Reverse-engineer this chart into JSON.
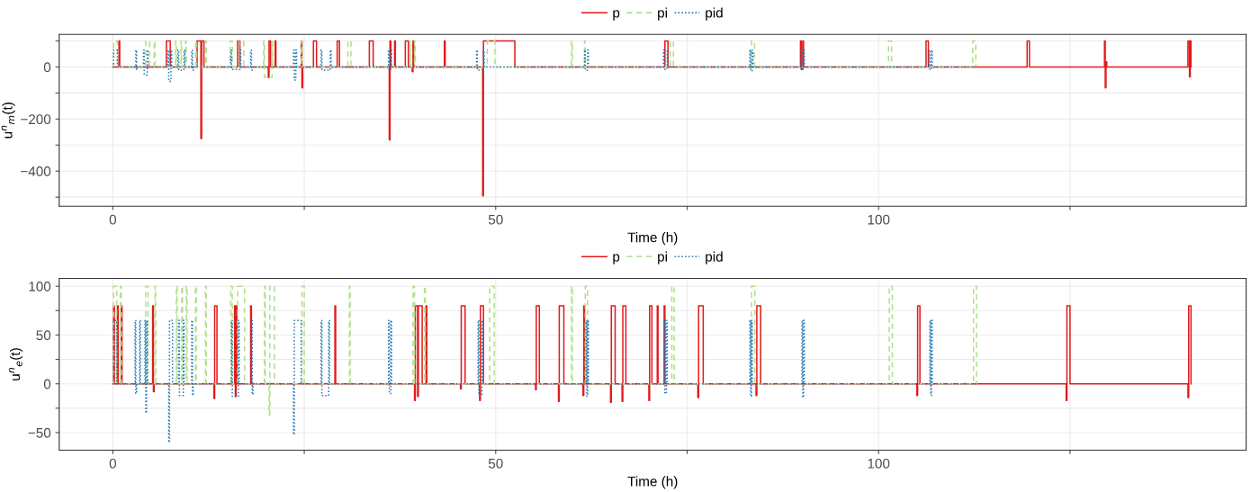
{
  "chart_data": [
    {
      "type": "step",
      "xlabel": "Time (h)",
      "ylabel": "u$^{n}$$_{m}$(t)",
      "xlim": [
        -7,
        148
      ],
      "ylim": [
        -535,
        125
      ],
      "xticks": [
        {
          "value": 0,
          "label": "0"
        },
        {
          "value": 25,
          "label": null
        },
        {
          "value": 50,
          "label": "50"
        },
        {
          "value": 75,
          "label": null
        },
        {
          "value": 100,
          "label": "100"
        },
        {
          "value": 125,
          "label": null
        }
      ],
      "yticks": [
        {
          "value": -500,
          "label": null
        },
        {
          "value": -400,
          "label": "−400"
        },
        {
          "value": -300,
          "label": null
        },
        {
          "value": -200,
          "label": "−200"
        },
        {
          "value": -100,
          "label": null
        },
        {
          "value": 0,
          "label": "0"
        },
        {
          "value": 100,
          "label": null
        }
      ],
      "grid": true,
      "legend": "top",
      "series": [
        {
          "name": "p",
          "color": "#e31a1c",
          "line_style": "solid",
          "x": [
            0,
            0.8,
            0.9,
            7.0,
            7.4,
            7.5,
            11.0,
            11.4,
            11.5,
            11.6,
            11.8,
            11.9,
            16.3,
            16.5,
            16.6,
            20.3,
            20.4,
            20.6,
            21.2,
            21.3,
            24.6,
            24.7,
            24.8,
            26.2,
            26.5,
            26.6,
            29.3,
            29.5,
            29.6,
            33.5,
            33.9,
            34.0,
            36.1,
            36.2,
            36.3,
            36.8,
            36.9,
            38.2,
            38.5,
            38.6,
            39.1,
            39.2,
            39.3,
            43.3,
            43.4,
            48.3,
            48.4,
            52.4,
            52.5,
            72.1,
            72.4,
            72.5,
            89.8,
            89.9,
            90.1,
            90.2,
            106.2,
            106.4,
            106.5,
            119.4,
            119.6,
            119.7,
            129.5,
            129.6,
            129.7,
            129.8,
            140.4,
            140.6,
            140.7,
            140.8
          ],
          "values": [
            0,
            100,
            0,
            100,
            100,
            0,
            100,
            100,
            -275,
            100,
            100,
            0,
            100,
            100,
            0,
            -40,
            100,
            0,
            100,
            0,
            100,
            -80,
            0,
            100,
            100,
            0,
            100,
            100,
            0,
            100,
            100,
            0,
            -280,
            100,
            0,
            100,
            0,
            100,
            100,
            0,
            -18,
            100,
            0,
            100,
            0,
            -495,
            100,
            100,
            0,
            100,
            100,
            0,
            100,
            -10,
            100,
            0,
            100,
            100,
            0,
            100,
            100,
            0,
            100,
            -80,
            20,
            0,
            100,
            -38,
            100,
            0
          ]
        },
        {
          "name": "pi",
          "color": "#b2df8a",
          "line_style": "dashed",
          "x": [
            0,
            0.1,
            0.5,
            0.6,
            4.3,
            4.7,
            4.8,
            5.4,
            5.5,
            8.2,
            8.3,
            8.9,
            9.0,
            9.5,
            9.6,
            10.8,
            10.9,
            12.1,
            12.2,
            15.3,
            15.6,
            16.5,
            17.0,
            17.1,
            19.7,
            19.8,
            20.8,
            20.9,
            24.6,
            24.7,
            30.7,
            31.0,
            31.1,
            38.8,
            38.9,
            39.4,
            39.5,
            48.9,
            49.8,
            49.9,
            59.9,
            60.0,
            61.6,
            61.7,
            72.8,
            73.1,
            73.2,
            83.4,
            83.7,
            83.8,
            101.3,
            101.6,
            101.7,
            112.3,
            112.6,
            112.7
          ],
          "values": [
            0,
            100,
            100,
            0,
            100,
            100,
            0,
            100,
            0,
            100,
            0,
            100,
            0,
            100,
            0,
            100,
            0,
            100,
            0,
            100,
            0,
            100,
            100,
            0,
            100,
            -40,
            100,
            0,
            100,
            0,
            100,
            100,
            0,
            100,
            0,
            100,
            0,
            100,
            100,
            0,
            100,
            0,
            100,
            0,
            100,
            100,
            0,
            100,
            100,
            0,
            100,
            100,
            0,
            100,
            100,
            0
          ]
        },
        {
          "name": "pid",
          "color": "#1f78b4",
          "line_style": "dotted",
          "x": [
            0,
            0.1,
            0.5,
            0.6,
            3.0,
            3.1,
            3.2,
            4.0,
            4.1,
            4.5,
            4.6,
            7.2,
            7.3,
            7.6,
            7.7,
            8.5,
            8.6,
            9.3,
            9.4,
            10.3,
            10.4,
            10.5,
            15.4,
            15.5,
            16.6,
            16.7,
            18.0,
            18.1,
            18.2,
            23.6,
            23.7,
            23.9,
            24.0,
            27.2,
            27.3,
            28.4,
            28.5,
            36.0,
            36.1,
            36.3,
            36.4,
            47.5,
            47.6,
            48.4,
            48.5,
            61.6,
            61.7,
            62.0,
            62.1,
            71.9,
            72.0,
            72.4,
            72.5,
            83.2,
            83.3,
            83.5,
            83.6,
            89.9,
            90.0,
            90.2,
            90.3,
            106.6,
            106.7,
            106.9,
            107.0,
            112.7
          ],
          "values": [
            0,
            65,
            65,
            0,
            65,
            -10,
            0,
            65,
            -30,
            65,
            0,
            65,
            -55,
            65,
            0,
            65,
            -12,
            65,
            0,
            65,
            -12,
            0,
            65,
            -10,
            65,
            0,
            65,
            -12,
            0,
            65,
            -50,
            65,
            0,
            65,
            -12,
            65,
            0,
            65,
            -12,
            65,
            0,
            65,
            -12,
            65,
            0,
            65,
            -12,
            65,
            0,
            65,
            -10,
            65,
            0,
            65,
            -15,
            65,
            0,
            65,
            -8,
            65,
            0,
            65,
            -10,
            65,
            0,
            0
          ]
        }
      ]
    },
    {
      "type": "step",
      "xlabel": "Time (h)",
      "ylabel": "u$^{n}$$_{e}$(t)",
      "xlim": [
        -7,
        148
      ],
      "ylim": [
        -68,
        108
      ],
      "xticks": [
        {
          "value": 0,
          "label": "0"
        },
        {
          "value": 25,
          "label": null
        },
        {
          "value": 50,
          "label": "50"
        },
        {
          "value": 75,
          "label": null
        },
        {
          "value": 100,
          "label": "100"
        },
        {
          "value": 125,
          "label": null
        }
      ],
      "yticks": [
        {
          "value": -50,
          "label": "−50"
        },
        {
          "value": -25,
          "label": null
        },
        {
          "value": 0,
          "label": "0"
        },
        {
          "value": 25,
          "label": null
        },
        {
          "value": 50,
          "label": "50"
        },
        {
          "value": 75,
          "label": null
        },
        {
          "value": 100,
          "label": "100"
        }
      ],
      "grid": true,
      "legend": "top",
      "series": [
        {
          "name": "p",
          "color": "#e31a1c",
          "line_style": "solid",
          "x": [
            0,
            0.1,
            0.2,
            0.6,
            0.7,
            1.1,
            1.2,
            5.2,
            5.3,
            5.4,
            13.2,
            13.3,
            13.5,
            13.6,
            15.9,
            16.0,
            16.1,
            16.2,
            18,
            18.1,
            29,
            29.1,
            39.4,
            39.5,
            39.8,
            39.9,
            40.3,
            40.4,
            40.9,
            41.0,
            45.4,
            45.5,
            45.9,
            46.0,
            47.9,
            48.0,
            48.3,
            48.4,
            55.2,
            55.3,
            55.6,
            55.7,
            58.2,
            58.3,
            58.8,
            58.9,
            61.4,
            61.5,
            61.6,
            65.0,
            65.1,
            65.5,
            65.6,
            66.5,
            66.6,
            66.9,
            67.0,
            70.0,
            70.1,
            70.3,
            70.4,
            71.1,
            71.2,
            72.0,
            72.1,
            76.4,
            76.5,
            77.0,
            77.1,
            84.0,
            84.1,
            84.5,
            84.6,
            105.0,
            105.1,
            105.3,
            105.4,
            124.5,
            124.6,
            124.9,
            125.0,
            140.4,
            140.5,
            140.7,
            140.8
          ],
          "values": [
            0,
            80,
            0,
            80,
            0,
            80,
            0,
            80,
            -8,
            0,
            -15,
            80,
            80,
            0,
            80,
            -13,
            80,
            0,
            80,
            0,
            80,
            0,
            -17,
            80,
            -13,
            80,
            80,
            0,
            80,
            0,
            -5,
            80,
            80,
            0,
            -17,
            80,
            80,
            0,
            -6,
            80,
            80,
            0,
            -18,
            80,
            80,
            0,
            -12,
            80,
            0,
            -19,
            80,
            80,
            0,
            -18,
            80,
            80,
            0,
            -17,
            80,
            80,
            0,
            80,
            0,
            80,
            0,
            -14,
            80,
            80,
            0,
            -12,
            80,
            80,
            0,
            -12,
            80,
            80,
            0,
            -17,
            80,
            80,
            0,
            -14,
            80,
            80,
            0
          ]
        },
        {
          "name": "pi",
          "color": "#b2df8a",
          "line_style": "dashed",
          "x": [
            0,
            0.1,
            0.4,
            0.5,
            1.0,
            1.1,
            4.3,
            4.5,
            4.6,
            5.5,
            5.6,
            8.3,
            8.4,
            9.0,
            9.1,
            9.6,
            9.7,
            10.8,
            10.9,
            12.1,
            12.2,
            15.4,
            15.6,
            16.3,
            17.1,
            17.2,
            19.8,
            19.9,
            20.4,
            20.5,
            21.0,
            21.1,
            24.7,
            24.9,
            25.0,
            30.9,
            31.0,
            39.2,
            39.4,
            40.7,
            40.8,
            49.2,
            49.7,
            49.8,
            59.9,
            60.0,
            61.7,
            61.9,
            62.0,
            73.0,
            73.2,
            73.3,
            83.4,
            83.75,
            83.85,
            101.4,
            101.7,
            101.8,
            112.4,
            112.7,
            112.8
          ],
          "values": [
            0,
            100,
            100,
            0,
            100,
            0,
            100,
            100,
            0,
            100,
            0,
            100,
            0,
            100,
            0,
            100,
            0,
            100,
            0,
            100,
            0,
            100,
            0,
            100,
            100,
            0,
            100,
            0,
            -32,
            100,
            100,
            0,
            100,
            100,
            0,
            100,
            0,
            100,
            0,
            100,
            0,
            100,
            100,
            0,
            100,
            0,
            100,
            100,
            0,
            100,
            100,
            0,
            100,
            100,
            0,
            100,
            100,
            0,
            100,
            100,
            0
          ]
        },
        {
          "name": "pid",
          "color": "#1f78b4",
          "line_style": "dotted",
          "x": [
            0,
            0.1,
            0.4,
            0.5,
            2.9,
            3.0,
            3.1,
            3.5,
            3.6,
            4.2,
            4.3,
            4.4,
            4.5,
            7.3,
            7.4,
            7.7,
            7.8,
            8.6,
            8.7,
            9.2,
            9.3,
            10.3,
            10.4,
            10.5,
            15.5,
            15.6,
            16.4,
            16.5,
            18.1,
            18.2,
            18.3,
            23.6,
            23.7,
            24.5,
            24.6,
            27.2,
            27.3,
            28.2,
            28.3,
            36.0,
            36.1,
            36.3,
            36.4,
            47.7,
            47.8,
            48.2,
            48.3,
            61.8,
            61.9,
            62.0,
            62.1,
            72.0,
            72.1,
            72.3,
            72.4,
            83.2,
            83.3,
            83.4,
            83.5,
            90.0,
            90.1,
            90.2,
            90.3,
            106.7,
            106.8,
            106.9,
            107.0,
            112.8
          ],
          "values": [
            0,
            65,
            65,
            0,
            65,
            -10,
            0,
            65,
            0,
            65,
            -30,
            65,
            0,
            -60,
            65,
            65,
            0,
            65,
            -12,
            65,
            0,
            65,
            -12,
            0,
            65,
            -13,
            65,
            0,
            65,
            -11,
            0,
            -52,
            65,
            65,
            0,
            65,
            -12,
            65,
            0,
            65,
            -10,
            65,
            0,
            65,
            -12,
            65,
            0,
            65,
            -13,
            65,
            0,
            65,
            -10,
            65,
            0,
            65,
            -13,
            65,
            0,
            65,
            -14,
            65,
            0,
            65,
            -12,
            65,
            0,
            0
          ]
        }
      ]
    }
  ]
}
